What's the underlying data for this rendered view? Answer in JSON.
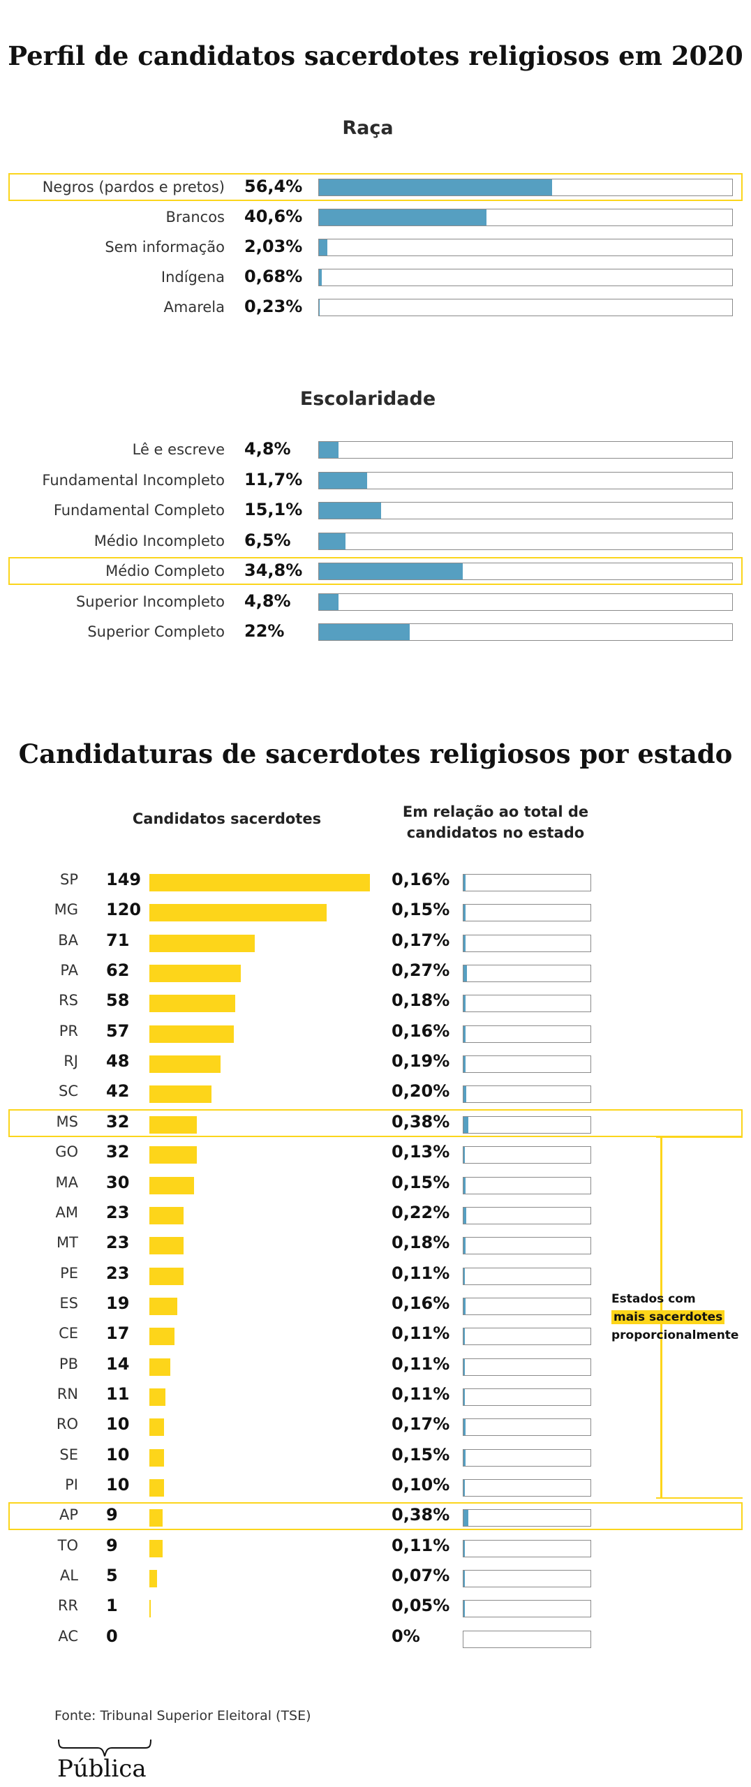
{
  "title": "Perfil de candidatos sacerdotes religiosos em 2020",
  "colors": {
    "blue_bar": "#569fc1",
    "yellow_bar": "#fdd51a",
    "highlight": "#fbd51c"
  },
  "chart_data": [
    {
      "type": "bar",
      "title": "Raça",
      "categories": [
        "Negros (pardos e pretos)",
        "Brancos",
        "Sem informação",
        "Indígena",
        "Amarela"
      ],
      "value_labels": [
        "56,4%",
        "40,6%",
        "2,03%",
        "0,68%",
        "0,23%"
      ],
      "values": [
        56.4,
        40.6,
        2.03,
        0.68,
        0.23
      ],
      "xlim": [
        0,
        100
      ],
      "highlighted": [
        "Negros (pardos e pretos)"
      ]
    },
    {
      "type": "bar",
      "title": "Escolaridade",
      "categories": [
        "Lê e escreve",
        "Fundamental Incompleto",
        "Fundamental Completo",
        "Médio Incompleto",
        "Médio Completo",
        "Superior Incompleto",
        "Superior Completo"
      ],
      "value_labels": [
        "4,8%",
        "11,7%",
        "15,1%",
        "6,5%",
        "34,8%",
        "4,8%",
        "22%"
      ],
      "values": [
        4.8,
        11.7,
        15.1,
        6.5,
        34.8,
        4.8,
        22
      ],
      "xlim": [
        0,
        100
      ],
      "highlighted": [
        "Médio Completo"
      ]
    },
    {
      "type": "bar",
      "title": "Candidaturas de sacerdotes religiosos por estado",
      "column_headers": [
        "Candidatos sacerdotes",
        "Em relação ao total de candidatos no estado"
      ],
      "categories": [
        "SP",
        "MG",
        "BA",
        "PA",
        "RS",
        "PR",
        "RJ",
        "SC",
        "MS",
        "GO",
        "MA",
        "AM",
        "MT",
        "PE",
        "ES",
        "CE",
        "PB",
        "RN",
        "RO",
        "SE",
        "PI",
        "AP",
        "TO",
        "AL",
        "RR",
        "AC"
      ],
      "series": [
        {
          "values": [
            149,
            120,
            71,
            62,
            58,
            57,
            48,
            42,
            32,
            32,
            30,
            23,
            23,
            23,
            19,
            17,
            14,
            11,
            10,
            10,
            10,
            9,
            9,
            5,
            1,
            0
          ]
        },
        {
          "values": [
            0.16,
            0.15,
            0.17,
            0.27,
            0.18,
            0.16,
            0.19,
            0.2,
            0.38,
            0.13,
            0.15,
            0.22,
            0.18,
            0.11,
            0.16,
            0.11,
            0.11,
            0.11,
            0.17,
            0.15,
            0.1,
            0.38,
            0.11,
            0.07,
            0.05,
            0
          ],
          "labels": [
            "0,16%",
            "0,15%",
            "0,17%",
            "0,27%",
            "0,18%",
            "0,16%",
            "0,19%",
            "0,20%",
            "0,38%",
            "0,13%",
            "0,15%",
            "0,22%",
            "0,18%",
            "0,11%",
            "0,16%",
            "0,11%",
            "0,11%",
            "0,11%",
            "0,17%",
            "0,15%",
            "0,10%",
            "0,38%",
            "0,11%",
            "0,07%",
            "0,05%",
            "0%"
          ]
        }
      ],
      "count_max": 149,
      "pct_xlim": [
        0,
        10
      ],
      "highlighted": [
        "MS",
        "AP"
      ],
      "annotation": {
        "line1": "Estados com",
        "highlight": "mais sacerdotes",
        "line3": "proporcionalmente"
      }
    }
  ],
  "source": "Fonte: Tribunal Superior Eleitoral (TSE)",
  "logo_text": "Pública"
}
